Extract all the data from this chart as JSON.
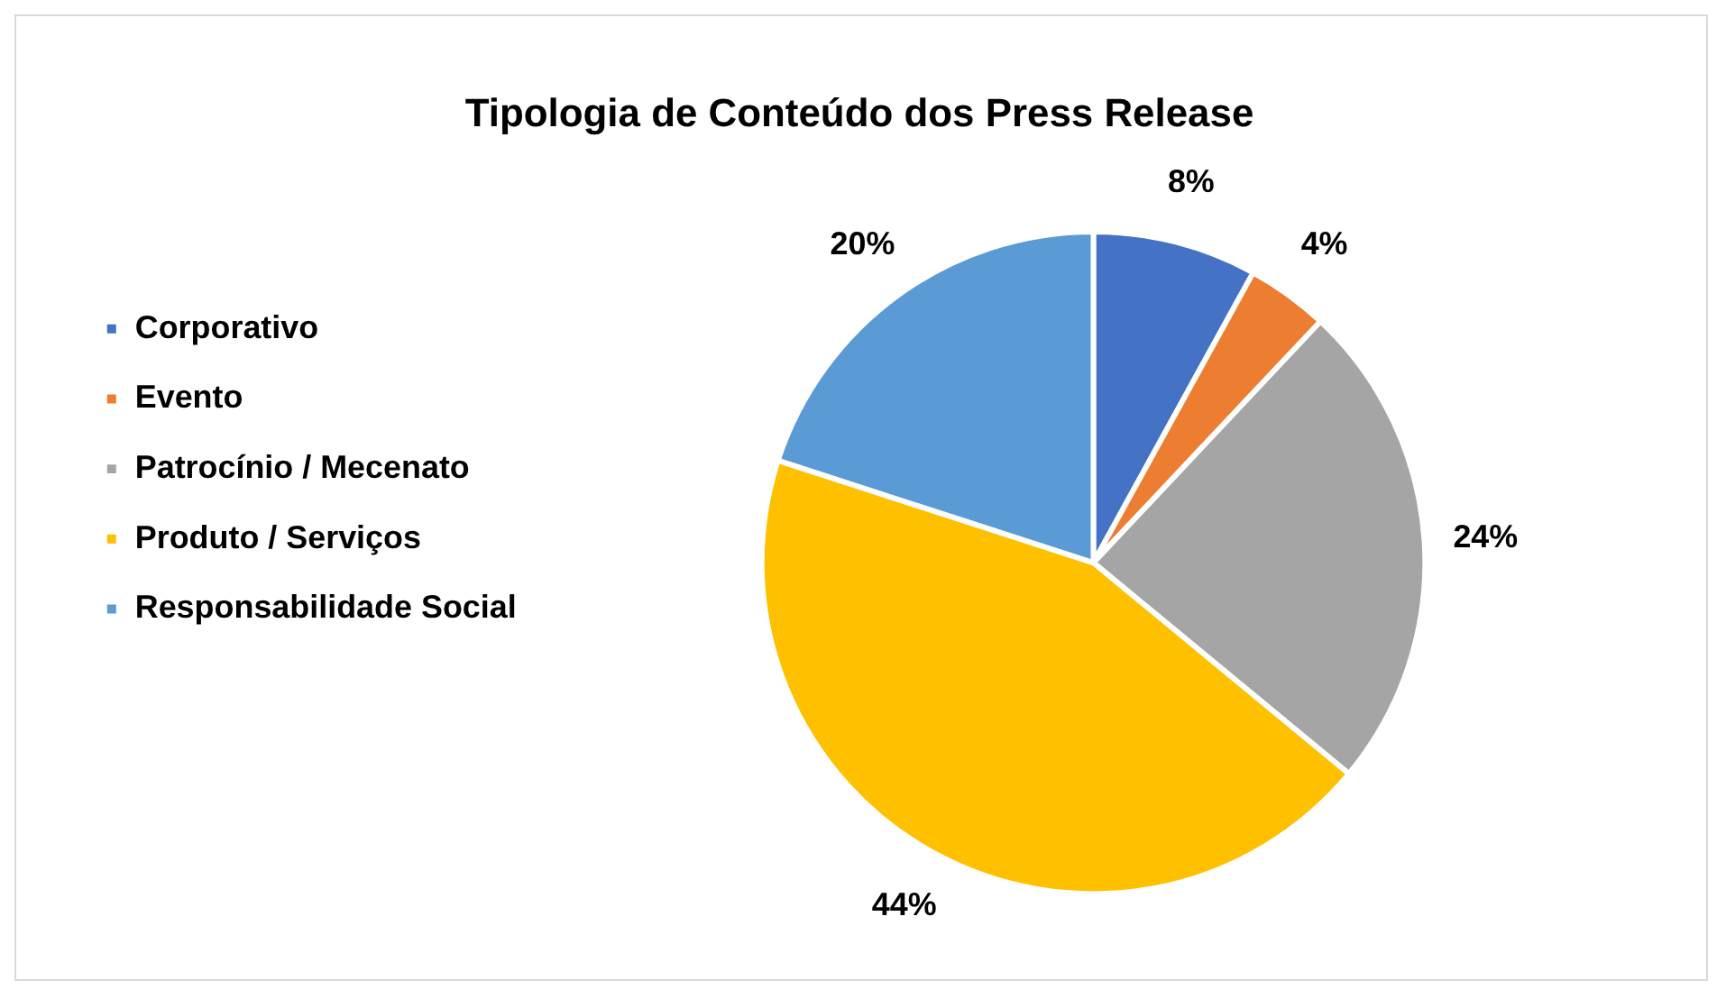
{
  "chart_data": {
    "type": "pie",
    "title": "Tipologia de Conteúdo dos Press Release",
    "categories": [
      "Corporativo",
      "Evento",
      "Patrocínio / Mecenato",
      "Produto / Serviços",
      "Responsabilidade Social"
    ],
    "values": [
      8,
      4,
      24,
      44,
      20
    ],
    "value_labels": [
      "8%",
      "4%",
      "24%",
      "44%",
      "20%"
    ],
    "colors": [
      "#4472c4",
      "#ed7d31",
      "#a5a5a5",
      "#ffc000",
      "#5b9bd5"
    ],
    "legend": "left"
  }
}
